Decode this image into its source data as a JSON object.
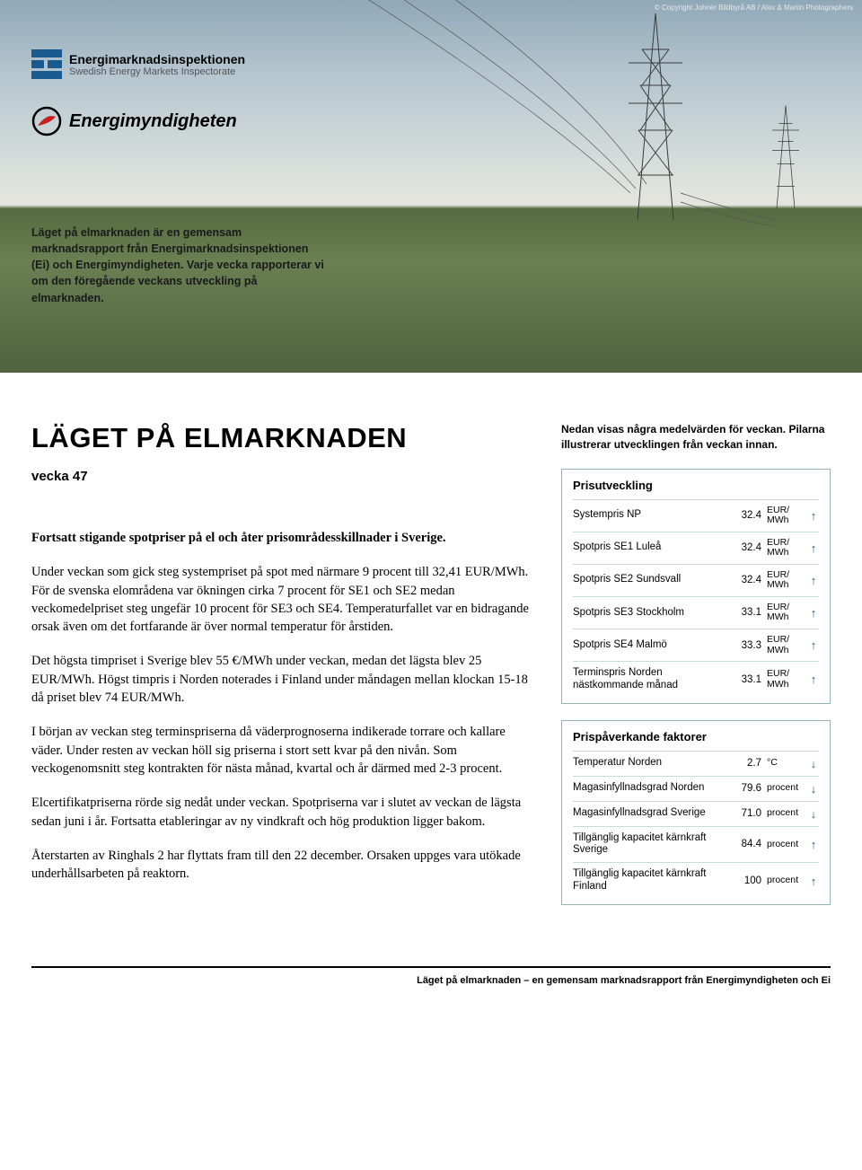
{
  "hero": {
    "copyright": "© Copyright Johnér Bildbyrå AB / Alex & Martin Photographers",
    "logo_ei_l1": "Energimarknadsinspektionen",
    "logo_ei_l2": "Swedish Energy Markets Inspectorate",
    "logo_em": "Energimyndigheten",
    "intro": "Läget på elmarknaden är en gemensam marknadsrapport från Energimarknadsinspektionen (Ei) och Energimyndigheten. Varje vecka rapporterar vi om den föregående veckans utveckling på elmarknaden."
  },
  "main": {
    "title": "LÄGET PÅ ELMARKNADEN",
    "week": "vecka 47",
    "lead": "Fortsatt stigande spotpriser på el och åter prisområdesskillnader i Sverige.",
    "p1": "Under veckan som gick steg systempriset på spot med närmare 9 procent till 32,41 EUR/MWh. För de svenska elområdena var ökningen cirka 7 procent för SE1 och SE2 medan veckomedelpriset steg ungefär 10 procent för SE3 och SE4. Temperaturfallet var en bidragande orsak även om det fortfarande är över normal temperatur för årstiden.",
    "p2": "Det högsta timpriset i Sverige blev 55 €/MWh under veckan, medan det lägsta blev 25 EUR/MWh. Högst timpris i Norden noterades i Finland under måndagen mellan klockan 15-18 då priset blev 74 EUR/MWh.",
    "p3": "I början av veckan steg terminspriserna då väderprognoserna indikerade torrare och kallare väder. Under resten av veckan höll sig priserna i stort sett kvar på den nivån. Som veckogenomsnitt steg kontrakten för nästa månad, kvartal och år därmed med 2-3 procent.",
    "p4": "Elcertifikatpriserna rörde sig nedåt under veckan. Spotpriserna var i slutet av veckan de lägsta sedan juni i år. Fortsatta etableringar av ny vindkraft och hög produktion ligger bakom.",
    "p5": "Återstarten av Ringhals 2 har flyttats fram till den 22 december. Orsaken uppges vara utökade underhållsarbeten på reaktorn."
  },
  "sidebar": {
    "note": "Nedan visas några medelvärden för veckan. Pilarna illustrerar utvecklingen från veckan innan.",
    "box1_title": "Prisutveckling",
    "box2_title": "Prispåverkande faktorer",
    "prices": [
      {
        "label": "Systempris NP",
        "val": "32.4",
        "unit": "EUR/\nMWh",
        "arrow": "↑"
      },
      {
        "label": "Spotpris SE1 Luleå",
        "val": "32.4",
        "unit": "EUR/\nMWh",
        "arrow": "↑"
      },
      {
        "label": "Spotpris SE2 Sundsvall",
        "val": "32.4",
        "unit": "EUR/\nMWh",
        "arrow": "↑"
      },
      {
        "label": "Spotpris SE3 Stockholm",
        "val": "33.1",
        "unit": "EUR/\nMWh",
        "arrow": "↑"
      },
      {
        "label": "Spotpris SE4 Malmö",
        "val": "33.3",
        "unit": "EUR/\nMWh",
        "arrow": "↑"
      },
      {
        "label": "Terminspris Norden nästkommande månad",
        "val": "33.1",
        "unit": "EUR/\nMWh",
        "arrow": "↑"
      }
    ],
    "factors": [
      {
        "label": "Temperatur Norden",
        "val": "2.7",
        "unit": "°C",
        "arrow": "↓"
      },
      {
        "label": "Magasinfyllnadsgrad Norden",
        "val": "79.6",
        "unit": "procent",
        "arrow": "↓"
      },
      {
        "label": "Magasinfyllnadsgrad Sverige",
        "val": "71.0",
        "unit": "procent",
        "arrow": "↓"
      },
      {
        "label": "Tillgänglig kapacitet kärnkraft Sverige",
        "val": "84.4",
        "unit": "procent",
        "arrow": "↑"
      },
      {
        "label": "Tillgänglig kapacitet kärnkraft Finland",
        "val": "100",
        "unit": "procent",
        "arrow": "↑"
      }
    ]
  },
  "footer": "Läget på elmarknaden – en gemensam marknadsrapport från Energimyndigheten och Ei"
}
